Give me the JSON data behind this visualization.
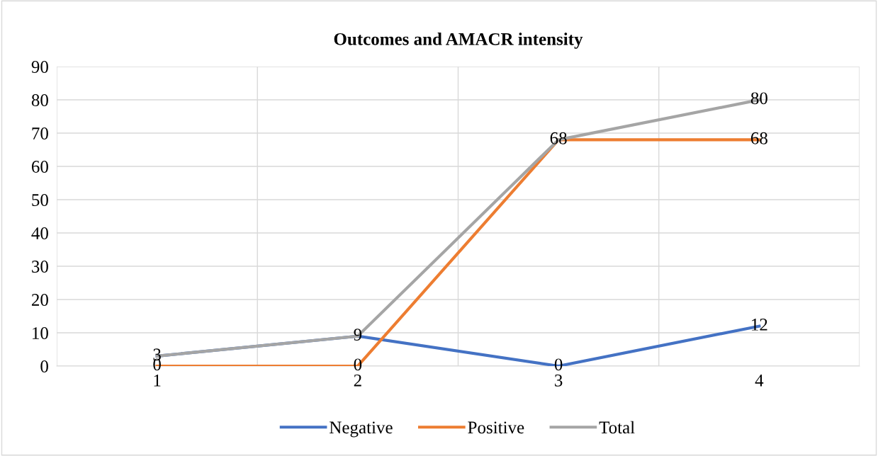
{
  "chart_data": {
    "type": "line",
    "title": "Outcomes and AMACR intensity",
    "categories": [
      "1",
      "2",
      "3",
      "4"
    ],
    "series": [
      {
        "name": "Negative",
        "color": "#4472c4",
        "values": [
          3,
          9,
          0,
          12
        ],
        "value_labels": [
          "3",
          "9",
          "0",
          "12"
        ]
      },
      {
        "name": "Positive",
        "color": "#ed7d31",
        "values": [
          0,
          0,
          68,
          68
        ],
        "value_labels": [
          "0",
          "0",
          "68",
          "68"
        ]
      },
      {
        "name": "Total",
        "color": "#a5a5a5",
        "values": [
          3,
          9,
          68,
          80
        ],
        "value_labels": [
          null,
          null,
          null,
          "80"
        ]
      }
    ],
    "ylim": [
      0,
      90
    ],
    "yticks": [
      0,
      10,
      20,
      30,
      40,
      50,
      60,
      70,
      80,
      90
    ],
    "grid": true,
    "legend": "bottom",
    "marker": "none",
    "line_style": "solid"
  }
}
